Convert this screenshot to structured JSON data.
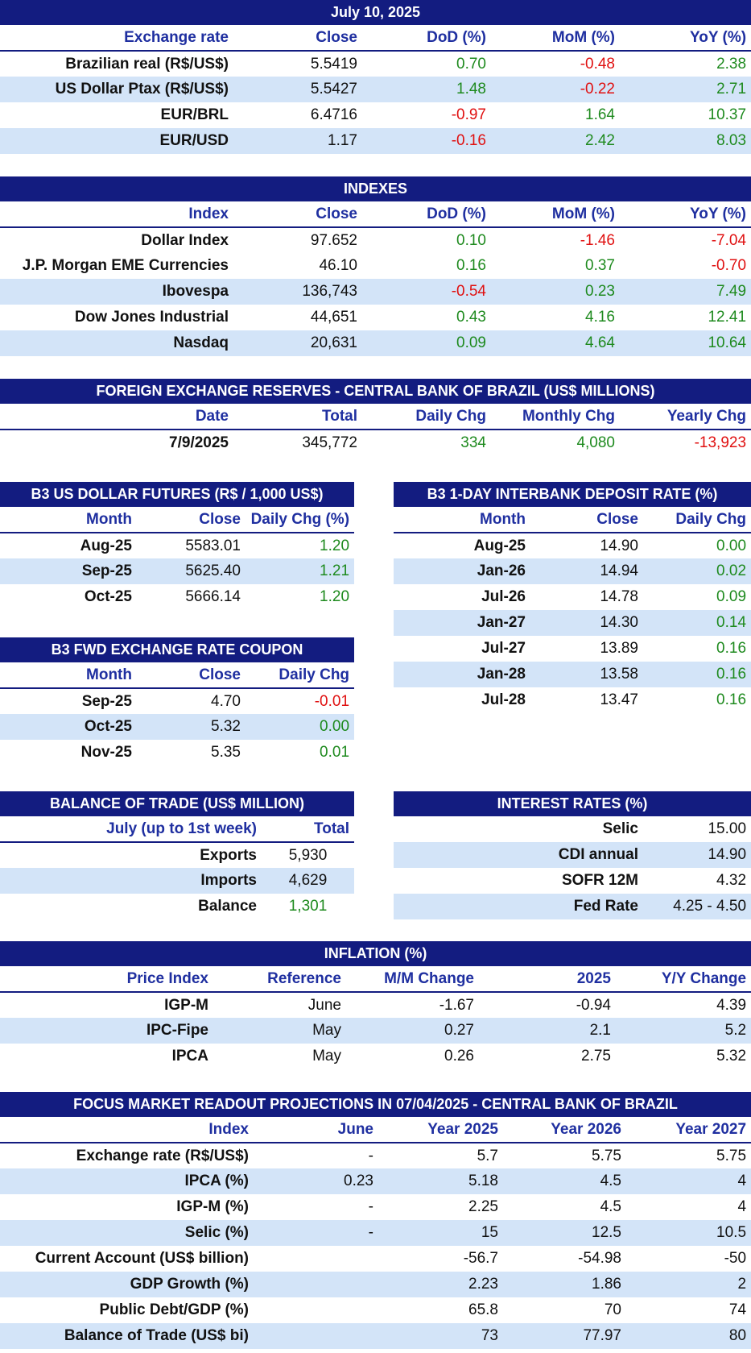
{
  "exchange": {
    "title": "July 10, 2025",
    "headers": [
      "Exchange rate",
      "Close",
      "DoD (%)",
      "MoM (%)",
      "YoY (%)"
    ],
    "rows": [
      {
        "name": "Brazilian real (R$/US$)",
        "close": "5.5419",
        "dod": "0.70",
        "mom": "-0.48",
        "yoy": "2.38"
      },
      {
        "name": "US Dollar Ptax (R$/US$)",
        "close": "5.5427",
        "dod": "1.48",
        "mom": "-0.22",
        "yoy": "2.71"
      },
      {
        "name": "EUR/BRL",
        "close": "6.4716",
        "dod": "-0.97",
        "mom": "1.64",
        "yoy": "10.37"
      },
      {
        "name": "EUR/USD",
        "close": "1.17",
        "dod": "-0.16",
        "mom": "2.42",
        "yoy": "8.03"
      }
    ]
  },
  "indexes": {
    "title": "INDEXES",
    "headers": [
      "Index",
      "Close",
      "DoD (%)",
      "MoM (%)",
      "YoY (%)"
    ],
    "rows": [
      {
        "name": "Dollar Index",
        "close": "97.652",
        "dod": "0.10",
        "mom": "-1.46",
        "yoy": "-7.04"
      },
      {
        "name": "J.P. Morgan EME Currencies",
        "close": "46.10",
        "dod": "0.16",
        "mom": "0.37",
        "yoy": "-0.70"
      },
      {
        "name": "Ibovespa",
        "close": "136,743",
        "dod": "-0.54",
        "mom": "0.23",
        "yoy": "7.49"
      },
      {
        "name": "Dow Jones Industrial",
        "close": "44,651",
        "dod": "0.43",
        "mom": "4.16",
        "yoy": "12.41"
      },
      {
        "name": "Nasdaq",
        "close": "20,631",
        "dod": "0.09",
        "mom": "4.64",
        "yoy": "10.64"
      }
    ]
  },
  "reserves": {
    "title": "FOREIGN EXCHANGE RESERVES - CENTRAL BANK OF BRAZIL (US$ MILLIONS)",
    "headers": [
      "Date",
      "Total",
      "Daily Chg",
      "Monthly Chg",
      "Yearly Chg"
    ],
    "row": {
      "date": "7/9/2025",
      "total": "345,772",
      "daily": "334",
      "monthly": "4,080",
      "yearly": "-13,923"
    }
  },
  "futures": {
    "title": "B3 US DOLLAR FUTURES (R$ / 1,000 US$)",
    "headers": [
      "Month",
      "Close",
      "Daily Chg (%)"
    ],
    "rows": [
      {
        "month": "Aug-25",
        "close": "5583.01",
        "chg": "1.20"
      },
      {
        "month": "Sep-25",
        "close": "5625.40",
        "chg": "1.21"
      },
      {
        "month": "Oct-25",
        "close": "5666.14",
        "chg": "1.20"
      }
    ]
  },
  "interbank": {
    "title": "B3 1-DAY INTERBANK DEPOSIT RATE (%)",
    "headers": [
      "Month",
      "Close",
      "Daily Chg"
    ],
    "rows": [
      {
        "month": "Aug-25",
        "close": "14.90",
        "chg": "0.00"
      },
      {
        "month": "Jan-26",
        "close": "14.94",
        "chg": "0.02"
      },
      {
        "month": "Jul-26",
        "close": "14.78",
        "chg": "0.09"
      },
      {
        "month": "Jan-27",
        "close": "14.30",
        "chg": "0.14"
      },
      {
        "month": "Jul-27",
        "close": "13.89",
        "chg": "0.16"
      },
      {
        "month": "Jan-28",
        "close": "13.58",
        "chg": "0.16"
      },
      {
        "month": "Jul-28",
        "close": "13.47",
        "chg": "0.16"
      }
    ]
  },
  "coupon": {
    "title": "B3 FWD EXCHANGE RATE COUPON",
    "headers": [
      "Month",
      "Close",
      "Daily Chg"
    ],
    "rows": [
      {
        "month": "Sep-25",
        "close": "4.70",
        "chg": "-0.01"
      },
      {
        "month": "Oct-25",
        "close": "5.32",
        "chg": "0.00"
      },
      {
        "month": "Nov-25",
        "close": "5.35",
        "chg": "0.01"
      }
    ]
  },
  "trade": {
    "title": "BALANCE OF TRADE (US$ MILLION)",
    "headers": [
      "July (up to 1st week)",
      "Total"
    ],
    "rows": [
      {
        "name": "Exports",
        "value": "5,930"
      },
      {
        "name": "Imports",
        "value": "4,629"
      },
      {
        "name": "Balance",
        "value": "1,301"
      }
    ]
  },
  "rates": {
    "title": "INTEREST RATES (%)",
    "rows": [
      {
        "name": "Selic",
        "value": "15.00"
      },
      {
        "name": "CDI annual",
        "value": "14.90"
      },
      {
        "name": "SOFR 12M",
        "value": "4.32"
      },
      {
        "name": "Fed Rate",
        "value": "4.25 - 4.50"
      }
    ]
  },
  "inflation": {
    "title": "INFLATION (%)",
    "headers": [
      "Price Index",
      "Reference",
      "M/M Change",
      "2025",
      "Y/Y Change"
    ],
    "rows": [
      {
        "name": "IGP-M",
        "ref": "June",
        "mm": "-1.67",
        "y2025": "-0.94",
        "yy": "4.39"
      },
      {
        "name": "IPC-Fipe",
        "ref": "May",
        "mm": "0.27",
        "y2025": "2.1",
        "yy": "5.2"
      },
      {
        "name": "IPCA",
        "ref": "May",
        "mm": "0.26",
        "y2025": "2.75",
        "yy": "5.32"
      }
    ]
  },
  "focus": {
    "title": "FOCUS MARKET READOUT PROJECTIONS IN 07/04/2025 - CENTRAL BANK OF BRAZIL",
    "headers": [
      "Index",
      "June",
      "Year 2025",
      "Year 2026",
      "Year 2027"
    ],
    "rows": [
      {
        "name": "Exchange rate (R$/US$)",
        "june": "-",
        "y25": "5.7",
        "y26": "5.75",
        "y27": "5.75"
      },
      {
        "name": "IPCA (%)",
        "june": "0.23",
        "y25": "5.18",
        "y26": "4.5",
        "y27": "4"
      },
      {
        "name": "IGP-M (%)",
        "june": "-",
        "y25": "2.25",
        "y26": "4.5",
        "y27": "4"
      },
      {
        "name": "Selic (%)",
        "june": "-",
        "y25": "15",
        "y26": "12.5",
        "y27": "10.5"
      },
      {
        "name": "Current Account (US$ billion)",
        "june": "",
        "y25": "-56.7",
        "y26": "-54.98",
        "y27": "-50"
      },
      {
        "name": "GDP Growth (%)",
        "june": "",
        "y25": "2.23",
        "y26": "1.86",
        "y27": "2"
      },
      {
        "name": "Public Debt/GDP (%)",
        "june": "",
        "y25": "65.8",
        "y26": "70",
        "y27": "74"
      },
      {
        "name": "Balance of Trade (US$ bi)",
        "june": "",
        "y25": "73",
        "y26": "77.97",
        "y27": "80"
      }
    ]
  },
  "colors": {
    "header": "#131c80",
    "header_text": "#1f2fa0",
    "band": "#d3e4f8",
    "positive": "#1e8a1e",
    "negative": "#e01010"
  }
}
